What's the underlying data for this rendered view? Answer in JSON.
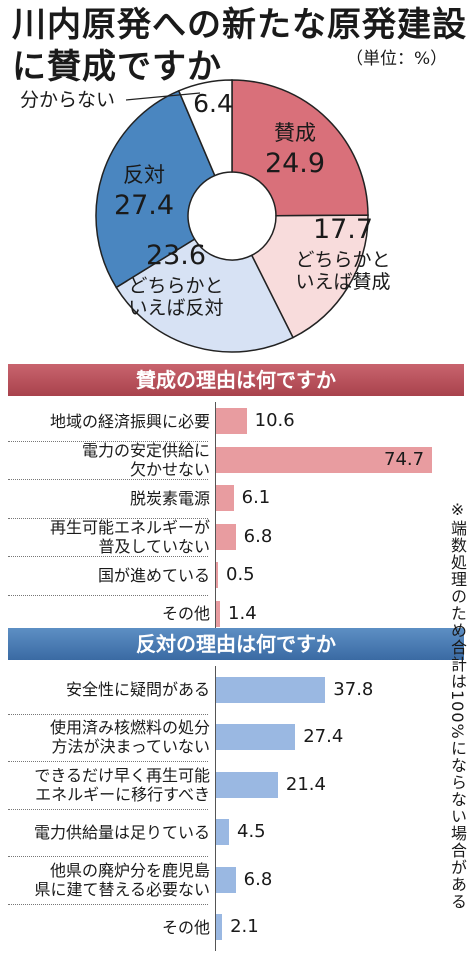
{
  "title_line1": "川内原発への新たな原発建設",
  "title_line2": "に賛成ですか",
  "unit": "（単位：%）",
  "note": "※端数処理のため合計は100%にならない場合がある",
  "chart_data": [
    {
      "type": "pie",
      "style": "donut",
      "categories": [
        "賛成",
        "どちらかといえば賛成",
        "どちらかといえば反対",
        "反対",
        "分からない"
      ],
      "label_lines": [
        [
          "賛成"
        ],
        [
          "どちらかと",
          "いえば賛成"
        ],
        [
          "どちらかと",
          "いえば反対"
        ],
        [
          "反対"
        ],
        [
          "分からない"
        ]
      ],
      "values": [
        24.9,
        17.7,
        23.6,
        27.4,
        6.4
      ],
      "colors": [
        "#d9707a",
        "#f8dcdc",
        "#d7e2f4",
        "#4a86c0",
        "#ffffff"
      ]
    },
    {
      "type": "bar",
      "orientation": "horizontal",
      "title": "賛成の理由は何ですか",
      "categories": [
        "地域の経済振興に必要",
        "電力の安定供給に欠かせない",
        "脱炭素電源",
        "再生可能エネルギーが普及していない",
        "国が進めている",
        "その他"
      ],
      "label_lines": [
        [
          "地域の経済振興に必要"
        ],
        [
          "電力の安定供給に",
          "欠かせない"
        ],
        [
          "脱炭素電源"
        ],
        [
          "再生可能エネルギーが",
          "普及していない"
        ],
        [
          "国が進めている"
        ],
        [
          "その他"
        ]
      ],
      "values": [
        10.6,
        74.7,
        6.1,
        6.8,
        0.5,
        1.4
      ],
      "color": "#e89ca0"
    },
    {
      "type": "bar",
      "orientation": "horizontal",
      "title": "反対の理由は何ですか",
      "categories": [
        "安全性に疑問がある",
        "使用済み核燃料の処分方法が決まっていない",
        "できるだけ早く再生可能エネルギーに移行すべき",
        "電力供給量は足りている",
        "他県の廃炉分を鹿児島県に建て替える必要ない",
        "その他"
      ],
      "label_lines": [
        [
          "安全性に疑問がある"
        ],
        [
          "使用済み核燃料の処分",
          "方法が決まっていない"
        ],
        [
          "できるだけ早く再生可能",
          "エネルギーに移行すべき"
        ],
        [
          "電力供給量は足りている"
        ],
        [
          "他県の廃炉分を鹿児島",
          "県に建て替える必要ない"
        ],
        [
          "その他"
        ]
      ],
      "values": [
        37.8,
        27.4,
        21.4,
        4.5,
        6.8,
        2.1
      ],
      "color": "#9ab8e2"
    }
  ]
}
